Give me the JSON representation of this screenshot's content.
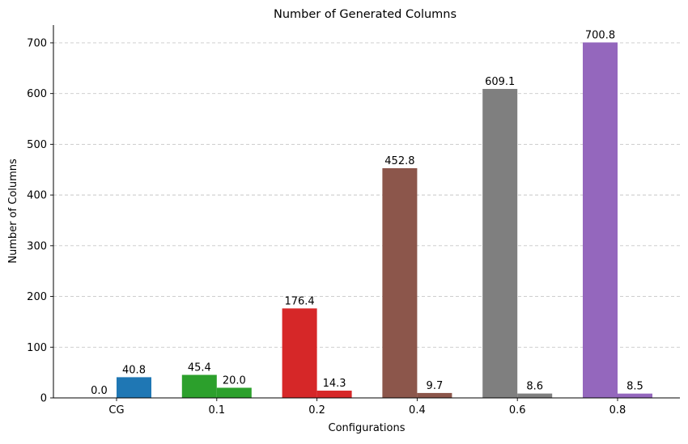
{
  "chart_data": {
    "type": "bar",
    "title": "Number of Generated Columns",
    "xlabel": "Configurations",
    "ylabel": "Number of Columns",
    "categories": [
      "CG",
      "0.1",
      "0.2",
      "0.4",
      "0.6",
      "0.8"
    ],
    "ylim": [
      0,
      735
    ],
    "yticks": [
      0,
      100,
      200,
      300,
      400,
      500,
      600,
      700
    ],
    "grid": "y-dashed",
    "legend": "none",
    "bars": [
      {
        "category": "CG",
        "left": 0.0,
        "right": 40.8,
        "left_label": "0.0",
        "right_label": "40.8",
        "color": "#1f77b4"
      },
      {
        "category": "0.1",
        "left": 45.4,
        "right": 20.0,
        "left_label": "45.4",
        "right_label": "20.0",
        "color": "#2ca02c"
      },
      {
        "category": "0.2",
        "left": 176.4,
        "right": 14.3,
        "left_label": "176.4",
        "right_label": "14.3",
        "color": "#d62728"
      },
      {
        "category": "0.4",
        "left": 452.8,
        "right": 9.7,
        "left_label": "452.8",
        "right_label": "9.7",
        "color": "#8c564b"
      },
      {
        "category": "0.6",
        "left": 609.1,
        "right": 8.6,
        "left_label": "609.1",
        "right_label": "8.6",
        "color": "#7f7f7f"
      },
      {
        "category": "0.8",
        "left": 700.8,
        "right": 8.5,
        "left_label": "700.8",
        "right_label": "8.5",
        "color": "#9467bd"
      }
    ]
  }
}
